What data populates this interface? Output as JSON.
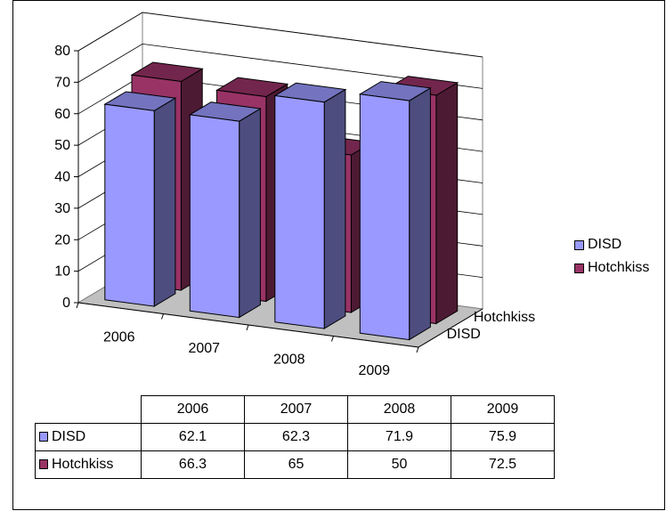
{
  "chart_data": {
    "type": "bar",
    "categories": [
      "2006",
      "2007",
      "2008",
      "2009"
    ],
    "series": [
      {
        "name": "DISD",
        "values": [
          62.1,
          62.3,
          71.9,
          75.9
        ],
        "color": "#9999FF"
      },
      {
        "name": "Hotchkiss",
        "values": [
          66.3,
          65,
          50,
          72.5
        ],
        "color": "#993366"
      }
    ],
    "ylim": [
      0,
      80
    ],
    "yticks": [
      0,
      10,
      20,
      30,
      40,
      50,
      60,
      70,
      80
    ],
    "depth_labels": [
      "Hotchkiss",
      "DISD"
    ],
    "grid": true,
    "legend_position": "right",
    "floor_color": "#C0C0C0",
    "data_table": true
  }
}
